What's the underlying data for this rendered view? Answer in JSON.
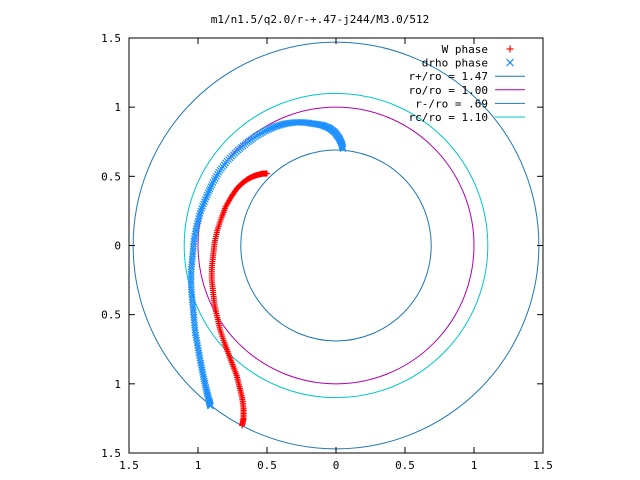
{
  "chart_data": {
    "type": "scatter",
    "title": "m1/n1.5/q2.0/r-+.47-j244/M3.0/512",
    "xlim": [
      -1.5,
      1.5
    ],
    "ylim": [
      -1.5,
      1.5
    ],
    "x_ticks": [
      -1.5,
      -1,
      -0.5,
      0,
      0.5,
      1,
      1.5
    ],
    "y_ticks": [
      -1.5,
      -1,
      -0.5,
      0,
      0.5,
      1,
      1.5
    ],
    "x_tick_labels": [
      "1.5",
      "1",
      "0.5",
      "0",
      "0.5",
      "1",
      "1.5"
    ],
    "y_tick_labels": [
      "1.5",
      "1",
      "0.5",
      "0",
      "0.5",
      "1",
      "1.5"
    ],
    "grid": false,
    "legend_position": "top-right",
    "series": [
      {
        "name": "W phase",
        "type": "scatter",
        "marker": "plus",
        "color": "#ff0000",
        "points": [
          [
            -0.5,
            0.52
          ],
          [
            -0.53,
            0.52
          ],
          [
            -0.57,
            0.51
          ],
          [
            -0.6,
            0.5
          ],
          [
            -0.64,
            0.48
          ],
          [
            -0.68,
            0.45
          ],
          [
            -0.72,
            0.41
          ],
          [
            -0.76,
            0.35
          ],
          [
            -0.8,
            0.28
          ],
          [
            -0.83,
            0.2
          ],
          [
            -0.86,
            0.11
          ],
          [
            -0.88,
            0.02
          ],
          [
            -0.89,
            -0.07
          ],
          [
            -0.9,
            -0.16
          ],
          [
            -0.9,
            -0.25
          ],
          [
            -0.89,
            -0.34
          ],
          [
            -0.88,
            -0.43
          ],
          [
            -0.86,
            -0.52
          ],
          [
            -0.84,
            -0.61
          ],
          [
            -0.81,
            -0.7
          ],
          [
            -0.78,
            -0.78
          ],
          [
            -0.75,
            -0.86
          ],
          [
            -0.72,
            -0.94
          ],
          [
            -0.7,
            -1.02
          ],
          [
            -0.68,
            -1.1
          ],
          [
            -0.67,
            -1.18
          ],
          [
            -0.67,
            -1.25
          ],
          [
            -0.68,
            -1.3
          ]
        ]
      },
      {
        "name": "drho phase",
        "type": "scatter",
        "marker": "cross",
        "color": "#1e90ff",
        "points": [
          [
            0.05,
            0.7
          ],
          [
            0.04,
            0.74
          ],
          [
            0.02,
            0.78
          ],
          [
            -0.01,
            0.82
          ],
          [
            -0.05,
            0.85
          ],
          [
            -0.1,
            0.87
          ],
          [
            -0.16,
            0.88
          ],
          [
            -0.23,
            0.89
          ],
          [
            -0.3,
            0.89
          ],
          [
            -0.37,
            0.88
          ],
          [
            -0.44,
            0.86
          ],
          [
            -0.51,
            0.83
          ],
          [
            -0.58,
            0.79
          ],
          [
            -0.65,
            0.74
          ],
          [
            -0.72,
            0.68
          ],
          [
            -0.79,
            0.61
          ],
          [
            -0.85,
            0.53
          ],
          [
            -0.9,
            0.44
          ],
          [
            -0.94,
            0.35
          ],
          [
            -0.98,
            0.25
          ],
          [
            -1.01,
            0.14
          ],
          [
            -1.03,
            0.03
          ],
          [
            -1.04,
            -0.08
          ],
          [
            -1.05,
            -0.19
          ],
          [
            -1.05,
            -0.3
          ],
          [
            -1.04,
            -0.41
          ],
          [
            -1.03,
            -0.52
          ],
          [
            -1.02,
            -0.63
          ],
          [
            -1.0,
            -0.74
          ],
          [
            -0.98,
            -0.85
          ],
          [
            -0.96,
            -0.95
          ],
          [
            -0.94,
            -1.04
          ],
          [
            -0.92,
            -1.12
          ],
          [
            -0.91,
            -1.16
          ]
        ]
      },
      {
        "name": "r+/ro = 1.47",
        "type": "circle",
        "radius": 1.47,
        "color": "#1f77b4"
      },
      {
        "name": "ro/ro = 1.00",
        "type": "circle",
        "radius": 1.0,
        "color": "#b000b0"
      },
      {
        "name": "r-/ro = .69",
        "type": "circle",
        "radius": 0.69,
        "color": "#1f77b4"
      },
      {
        "name": "rc/ro = 1.10",
        "type": "circle",
        "radius": 1.1,
        "color": "#00c8c8"
      }
    ]
  }
}
